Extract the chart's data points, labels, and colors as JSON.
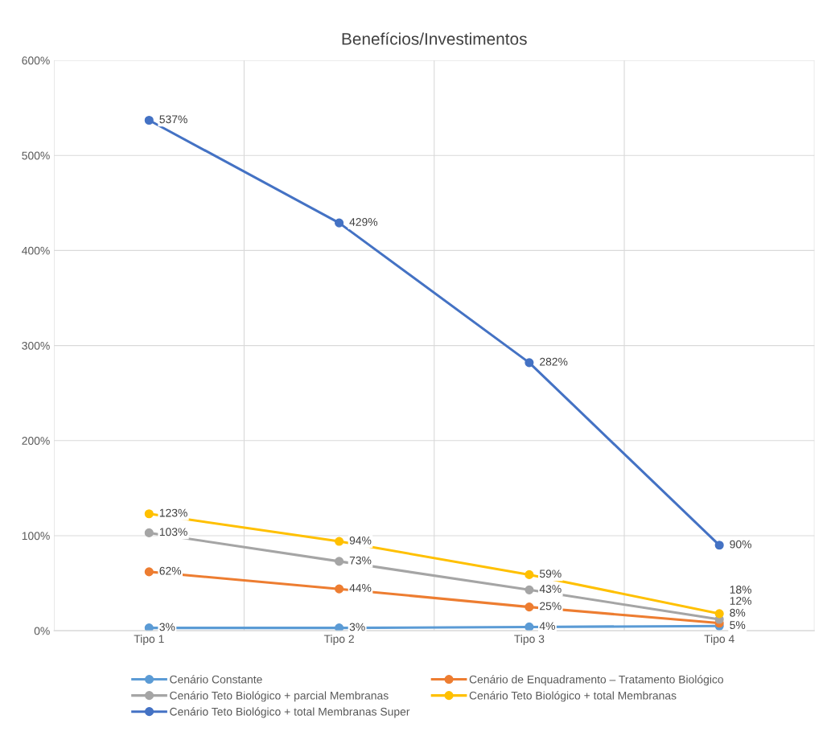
{
  "chart_data": {
    "type": "line",
    "title": "Benefícios/Investimentos",
    "categories": [
      "Tipo 1",
      "Tipo 2",
      "Tipo 3",
      "Tipo 4"
    ],
    "series": [
      {
        "name": "Cenário Constante",
        "color": "#5b9bd5",
        "values": [
          3,
          3,
          4,
          5
        ],
        "value_labels": [
          "3%",
          "3%",
          "4%",
          "5%"
        ]
      },
      {
        "name": "Cenário de Enquadramento – Tratamento Biológico",
        "color": "#ed7d31",
        "values": [
          62,
          44,
          25,
          8
        ],
        "value_labels": [
          "62%",
          "44%",
          "25%",
          "8%"
        ]
      },
      {
        "name": "Cenário Teto Biológico + parcial Membranas",
        "color": "#a5a5a5",
        "values": [
          103,
          73,
          43,
          12
        ],
        "value_labels": [
          "103%",
          "73%",
          "43%",
          "12%"
        ]
      },
      {
        "name": "Cenário Teto Biológico + total Membranas",
        "color": "#ffc000",
        "values": [
          123,
          94,
          59,
          18
        ],
        "value_labels": [
          "123%",
          "94%",
          "59%",
          "18%"
        ]
      },
      {
        "name": "Cenário Teto Biológico + total Membranas Super",
        "color": "#4472c4",
        "values": [
          537,
          429,
          282,
          90
        ],
        "value_labels": [
          "537%",
          "429%",
          "282%",
          "90%"
        ]
      }
    ],
    "ylim": [
      0,
      600
    ],
    "yticks": [
      {
        "value": 0,
        "label": "0%"
      },
      {
        "value": 100,
        "label": "100%"
      },
      {
        "value": 200,
        "label": "200%"
      },
      {
        "value": 300,
        "label": "300%"
      },
      {
        "value": 400,
        "label": "400%"
      },
      {
        "value": 500,
        "label": "500%"
      },
      {
        "value": 600,
        "label": "600%"
      }
    ],
    "grid": true,
    "legend": "bottom",
    "marker": "circle",
    "line_style": "solid"
  }
}
